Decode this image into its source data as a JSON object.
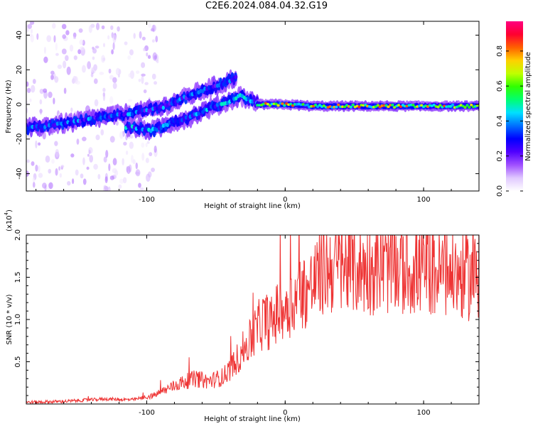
{
  "title": "C2E6.2024.084.04.32.G19",
  "chart_data": [
    {
      "type": "heatmap",
      "xlabel": "Height of straight line (km)",
      "ylabel": "Frequency (Hz)",
      "xlim": [
        -187,
        140
      ],
      "ylim": [
        -50,
        48
      ],
      "xticks": [
        -100,
        0,
        100
      ],
      "yticks": [
        -40,
        -20,
        0,
        20,
        40
      ],
      "colorbar": {
        "label": "Normalized spectral amplitude",
        "range": [
          0,
          0.97
        ],
        "ticks": [
          "0.0",
          "0.2",
          "0.4",
          "0.6",
          "0.8"
        ],
        "colors": [
          "#ffffff",
          "#e0c8ff",
          "#a050ff",
          "#5000ff",
          "#0000ff",
          "#0070ff",
          "#00e0ff",
          "#00ff70",
          "#30ff00",
          "#c0ff00",
          "#ffd000",
          "#ff6000",
          "#ff0030",
          "#ff0080"
        ]
      },
      "traces": [
        {
          "points": [
            [
              -187,
              -14
            ],
            [
              -170,
              -12
            ],
            [
              -150,
              -10
            ],
            [
              -130,
              -7
            ],
            [
              -110,
              -5
            ],
            [
              -90,
              -2
            ],
            [
              -75,
              3
            ],
            [
              -60,
              8
            ],
            [
              -45,
              12
            ],
            [
              -35,
              16
            ]
          ],
          "peak": 0.45
        },
        {
          "points": [
            [
              -115,
              -13
            ],
            [
              -95,
              -15
            ],
            [
              -80,
              -10
            ],
            [
              -70,
              -8
            ],
            [
              -60,
              -4
            ],
            [
              -50,
              -1
            ],
            [
              -40,
              2
            ],
            [
              -32,
              5
            ],
            [
              -25,
              2
            ],
            [
              -20,
              1
            ]
          ],
          "peak": 0.5
        },
        {
          "points": [
            [
              -20,
              0
            ],
            [
              -10,
              0
            ],
            [
              0,
              0
            ],
            [
              20,
              -1
            ],
            [
              50,
              -1
            ],
            [
              80,
              -1
            ],
            [
              110,
              -1
            ],
            [
              140,
              -1
            ]
          ],
          "peak": 0.9
        }
      ]
    },
    {
      "type": "line",
      "xlabel": "Height of straight line (km)",
      "ylabel": "SNR (10 * v/v)",
      "ymultiplier": "(x10",
      "ymultiplier_exp": "4",
      "ymultiplier_close": ")",
      "xlim": [
        -187,
        140
      ],
      "ylim": [
        0,
        2.0
      ],
      "xticks": [
        -100,
        0,
        100
      ],
      "yticks": [
        0.5,
        1.0,
        1.5,
        2.0
      ],
      "series": [
        {
          "color": "#ee3333",
          "points": [
            [
              -187,
              0.02
            ],
            [
              -160,
              0.03
            ],
            [
              -130,
              0.06
            ],
            [
              -110,
              0.05
            ],
            [
              -95,
              0.1
            ],
            [
              -85,
              0.18
            ],
            [
              -75,
              0.25
            ],
            [
              -65,
              0.3
            ],
            [
              -55,
              0.27
            ],
            [
              -45,
              0.32
            ],
            [
              -38,
              0.45
            ],
            [
              -30,
              0.65
            ],
            [
              -25,
              0.75
            ],
            [
              -20,
              0.9
            ],
            [
              -15,
              1.0
            ],
            [
              -10,
              0.95
            ],
            [
              -5,
              1.1
            ],
            [
              0,
              1.15
            ],
            [
              5,
              1.2
            ],
            [
              10,
              1.3
            ],
            [
              15,
              1.35
            ],
            [
              20,
              1.4
            ],
            [
              25,
              1.55
            ],
            [
              30,
              1.6
            ],
            [
              40,
              1.62
            ],
            [
              50,
              1.6
            ],
            [
              60,
              1.6
            ],
            [
              70,
              1.62
            ],
            [
              80,
              1.6
            ],
            [
              90,
              1.58
            ],
            [
              100,
              1.6
            ],
            [
              110,
              1.55
            ],
            [
              120,
              1.55
            ],
            [
              130,
              1.5
            ],
            [
              140,
              1.5
            ]
          ]
        }
      ]
    }
  ]
}
